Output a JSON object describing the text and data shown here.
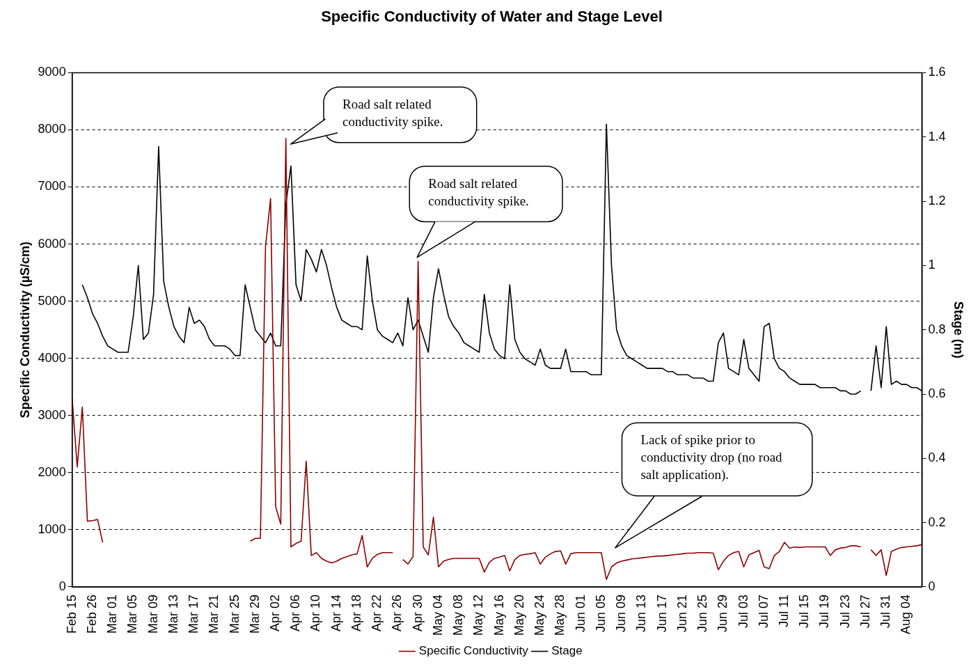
{
  "chart_data": {
    "type": "line",
    "title": "Specific Conductivity of Water and Stage Level",
    "ylabel": "Specific Conductivity (µS/cm)",
    "y2label": "Stage (m)",
    "categories": [
      "Feb 15",
      null,
      null,
      null,
      "Feb 26",
      null,
      null,
      null,
      "Mar 01",
      null,
      null,
      null,
      "Mar 05",
      null,
      null,
      null,
      "Mar 09",
      null,
      null,
      null,
      "Mar 13",
      null,
      null,
      null,
      "Mar 17",
      null,
      null,
      null,
      "Mar 21",
      null,
      null,
      null,
      "Mar 25",
      null,
      null,
      null,
      "Mar 29",
      null,
      null,
      null,
      "Apr 02",
      null,
      null,
      null,
      "Apr 06",
      null,
      null,
      null,
      "Apr 10",
      null,
      null,
      null,
      "Apr 14",
      null,
      null,
      null,
      "Apr 18",
      null,
      null,
      null,
      "Apr 22",
      null,
      null,
      null,
      "Apr 26",
      null,
      null,
      null,
      "Apr 30",
      null,
      null,
      null,
      "May 04",
      null,
      null,
      null,
      "May 08",
      null,
      null,
      null,
      "May 12",
      null,
      null,
      null,
      "May 16",
      null,
      null,
      null,
      "May 20",
      null,
      null,
      null,
      "May 24",
      null,
      null,
      null,
      "May 28",
      null,
      null,
      null,
      "Jun 01",
      null,
      null,
      null,
      "Jun 05",
      null,
      null,
      null,
      "Jun 09",
      null,
      null,
      null,
      "Jun 13",
      null,
      null,
      null,
      "Jun 17",
      null,
      null,
      null,
      "Jun 21",
      null,
      null,
      null,
      "Jun 25",
      null,
      null,
      null,
      "Jun 29",
      null,
      null,
      null,
      "Jul 03",
      null,
      null,
      null,
      "Jul 07",
      null,
      null,
      null,
      "Jul 11",
      null,
      null,
      null,
      "Jul 15",
      null,
      null,
      null,
      "Jul 19",
      null,
      null,
      null,
      "Jul 23",
      null,
      null,
      null,
      "Jul 27",
      null,
      null,
      null,
      "Jul 31",
      null,
      null,
      null,
      "Aug 04",
      null,
      null,
      null
    ],
    "series": [
      {
        "name": "Specific Conductivity",
        "color": "#8b0000",
        "values": [
          3300,
          2100,
          3150,
          1150,
          1160,
          1180,
          780,
          null,
          null,
          null,
          null,
          null,
          null,
          null,
          null,
          null,
          null,
          null,
          null,
          null,
          null,
          null,
          null,
          null,
          null,
          null,
          null,
          null,
          null,
          null,
          null,
          null,
          null,
          null,
          null,
          800,
          850,
          850,
          5950,
          6800,
          1400,
          1100,
          7850,
          700,
          760,
          800,
          2200,
          550,
          600,
          500,
          450,
          420,
          450,
          500,
          530,
          560,
          580,
          900,
          350,
          500,
          570,
          600,
          600,
          600,
          null,
          480,
          400,
          530,
          5700,
          700,
          560,
          1220,
          350,
          450,
          480,
          500,
          500,
          500,
          500,
          500,
          500,
          260,
          430,
          500,
          520,
          550,
          280,
          480,
          550,
          570,
          580,
          600,
          400,
          520,
          580,
          620,
          630,
          400,
          580,
          600,
          600,
          600,
          600,
          600,
          600,
          130,
          350,
          420,
          450,
          470,
          490,
          500,
          510,
          520,
          530,
          540,
          540,
          550,
          560,
          570,
          580,
          590,
          590,
          600,
          600,
          600,
          590,
          300,
          450,
          550,
          600,
          620,
          350,
          560,
          600,
          640,
          350,
          320,
          550,
          620,
          780,
          680,
          700,
          690,
          700,
          700,
          700,
          700,
          700,
          550,
          650,
          680,
          690,
          720,
          720,
          700,
          null,
          650,
          550,
          650,
          200,
          620,
          660,
          690,
          700,
          710,
          720,
          740
        ]
      },
      {
        "name": "Stage",
        "color": "#000000",
        "axis": "y2",
        "values": [
          null,
          null,
          0.94,
          0.9,
          0.85,
          0.82,
          0.78,
          0.75,
          0.74,
          0.73,
          0.73,
          0.73,
          0.84,
          1.0,
          0.77,
          0.79,
          0.91,
          1.37,
          0.95,
          0.87,
          0.81,
          0.78,
          0.76,
          0.87,
          0.82,
          0.83,
          0.81,
          0.77,
          0.75,
          0.75,
          0.75,
          0.74,
          0.72,
          0.72,
          0.94,
          0.87,
          0.8,
          0.78,
          0.76,
          0.79,
          0.75,
          0.75,
          1.19,
          1.31,
          0.94,
          0.89,
          1.05,
          1.02,
          0.98,
          1.05,
          1.0,
          0.93,
          0.87,
          0.83,
          0.82,
          0.81,
          0.81,
          0.8,
          1.03,
          0.89,
          0.8,
          0.78,
          0.77,
          0.76,
          0.79,
          0.75,
          0.9,
          0.8,
          0.83,
          0.78,
          0.73,
          0.9,
          0.99,
          0.91,
          0.84,
          0.81,
          0.79,
          0.76,
          0.75,
          0.74,
          0.73,
          0.91,
          0.79,
          0.74,
          0.72,
          0.71,
          0.94,
          0.77,
          0.73,
          0.71,
          0.7,
          0.69,
          0.74,
          0.69,
          0.68,
          0.68,
          0.68,
          0.74,
          0.67,
          0.67,
          0.67,
          0.67,
          0.66,
          0.66,
          0.66,
          1.44,
          1.0,
          0.8,
          0.75,
          0.72,
          0.71,
          0.7,
          0.69,
          0.68,
          0.68,
          0.68,
          0.68,
          0.67,
          0.67,
          0.66,
          0.66,
          0.66,
          0.65,
          0.65,
          0.65,
          0.64,
          0.64,
          0.76,
          0.79,
          0.68,
          0.67,
          0.66,
          0.77,
          0.68,
          0.66,
          0.64,
          0.81,
          0.82,
          0.71,
          0.68,
          0.67,
          0.65,
          0.64,
          0.63,
          0.63,
          0.63,
          0.63,
          0.62,
          0.62,
          0.62,
          0.62,
          0.61,
          0.61,
          0.6,
          0.6,
          0.61,
          null,
          0.61,
          0.75,
          0.62,
          0.81,
          0.63,
          0.64,
          0.63,
          0.63,
          0.62,
          0.62,
          0.61
        ]
      }
    ],
    "ylim": [
      0,
      9000
    ],
    "yticks": [
      0,
      1000,
      2000,
      3000,
      4000,
      5000,
      6000,
      7000,
      8000,
      9000
    ],
    "y2lim": [
      0,
      1.6
    ],
    "y2ticks": [
      0,
      0.2,
      0.4,
      0.6,
      0.8,
      1,
      1.2,
      1.4,
      1.6
    ],
    "grid": "y",
    "legend": "bottom",
    "marker": "none",
    "annotations": [
      "Road salt related conductivity spike.",
      "Road salt related conductivity spike.",
      "Lack of spike prior to conductivity drop (no road salt application)."
    ]
  }
}
